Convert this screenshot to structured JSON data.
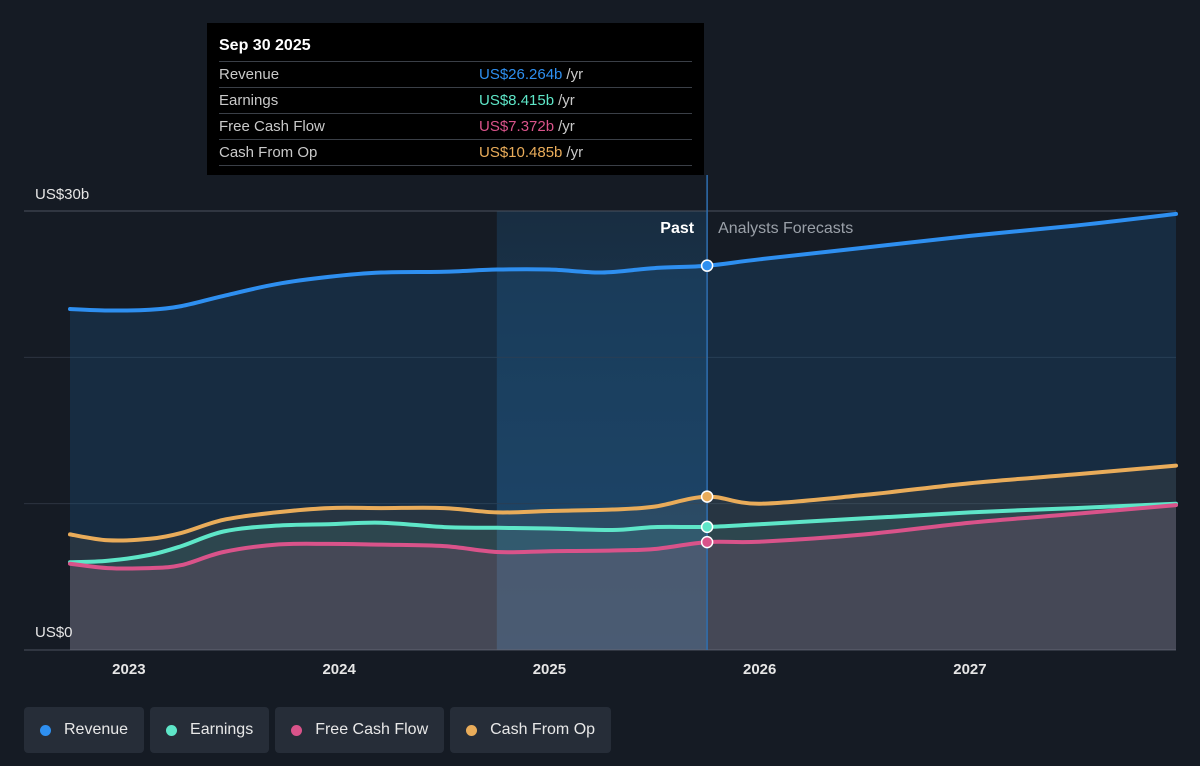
{
  "chart_data": {
    "type": "line",
    "x_axis": {
      "ticks": [
        "2023",
        "2024",
        "2025",
        "2026",
        "2027"
      ],
      "range": [
        2022.72,
        2027.98
      ]
    },
    "y_axis": {
      "min_label": "US$0",
      "max_label": "US$30b",
      "range": [
        0,
        30
      ],
      "unit": "US$ billions",
      "gridlines": [
        0,
        10,
        20,
        30
      ]
    },
    "divider_x": 2025.75,
    "past_band_start": 2024.75,
    "labels": {
      "past": "Past",
      "forecast": "Analysts Forecasts"
    },
    "series": [
      {
        "name": "Revenue",
        "color": "#2e8ff0",
        "points": [
          [
            2022.72,
            23.3
          ],
          [
            2022.9,
            23.2
          ],
          [
            2023.1,
            23.25
          ],
          [
            2023.25,
            23.5
          ],
          [
            2023.45,
            24.2
          ],
          [
            2023.7,
            25.0
          ],
          [
            2023.95,
            25.5
          ],
          [
            2024.2,
            25.8
          ],
          [
            2024.5,
            25.85
          ],
          [
            2024.75,
            26.0
          ],
          [
            2025.0,
            26.0
          ],
          [
            2025.25,
            25.8
          ],
          [
            2025.5,
            26.1
          ],
          [
            2025.75,
            26.264
          ]
        ],
        "forecast": [
          [
            2025.75,
            26.264
          ],
          [
            2026.0,
            26.7
          ],
          [
            2026.5,
            27.5
          ],
          [
            2027.0,
            28.3
          ],
          [
            2027.5,
            29.0
          ],
          [
            2027.98,
            29.8
          ]
        ]
      },
      {
        "name": "Earnings",
        "color": "#5ee6c8",
        "points": [
          [
            2022.72,
            6.0
          ],
          [
            2022.9,
            6.1
          ],
          [
            2023.1,
            6.5
          ],
          [
            2023.25,
            7.1
          ],
          [
            2023.45,
            8.1
          ],
          [
            2023.7,
            8.5
          ],
          [
            2023.95,
            8.6
          ],
          [
            2024.2,
            8.7
          ],
          [
            2024.5,
            8.4
          ],
          [
            2024.75,
            8.35
          ],
          [
            2025.0,
            8.3
          ],
          [
            2025.3,
            8.2
          ],
          [
            2025.5,
            8.4
          ],
          [
            2025.75,
            8.415
          ]
        ],
        "forecast": [
          [
            2025.75,
            8.415
          ],
          [
            2026.0,
            8.6
          ],
          [
            2026.5,
            9.0
          ],
          [
            2027.0,
            9.4
          ],
          [
            2027.5,
            9.7
          ],
          [
            2027.98,
            10.0
          ]
        ]
      },
      {
        "name": "Free Cash Flow",
        "color": "#d9538a",
        "points": [
          [
            2022.72,
            5.9
          ],
          [
            2022.9,
            5.6
          ],
          [
            2023.1,
            5.6
          ],
          [
            2023.25,
            5.8
          ],
          [
            2023.45,
            6.7
          ],
          [
            2023.7,
            7.2
          ],
          [
            2023.95,
            7.25
          ],
          [
            2024.2,
            7.2
          ],
          [
            2024.5,
            7.1
          ],
          [
            2024.75,
            6.7
          ],
          [
            2025.0,
            6.75
          ],
          [
            2025.3,
            6.8
          ],
          [
            2025.5,
            6.9
          ],
          [
            2025.75,
            7.372
          ]
        ],
        "forecast": [
          [
            2025.75,
            7.372
          ],
          [
            2026.0,
            7.4
          ],
          [
            2026.5,
            7.9
          ],
          [
            2027.0,
            8.7
          ],
          [
            2027.5,
            9.3
          ],
          [
            2027.98,
            9.9
          ]
        ]
      },
      {
        "name": "Cash From Op",
        "color": "#e9ac5a",
        "points": [
          [
            2022.72,
            7.9
          ],
          [
            2022.9,
            7.5
          ],
          [
            2023.1,
            7.6
          ],
          [
            2023.25,
            8.0
          ],
          [
            2023.45,
            8.9
          ],
          [
            2023.7,
            9.4
          ],
          [
            2023.95,
            9.7
          ],
          [
            2024.2,
            9.7
          ],
          [
            2024.5,
            9.7
          ],
          [
            2024.75,
            9.4
          ],
          [
            2025.0,
            9.5
          ],
          [
            2025.3,
            9.6
          ],
          [
            2025.5,
            9.8
          ],
          [
            2025.75,
            10.485
          ]
        ],
        "forecast": [
          [
            2025.75,
            10.485
          ],
          [
            2026.0,
            10.0
          ],
          [
            2026.5,
            10.6
          ],
          [
            2027.0,
            11.4
          ],
          [
            2027.5,
            12.0
          ],
          [
            2027.98,
            12.6
          ]
        ]
      }
    ]
  },
  "tooltip": {
    "date": "Sep 30 2025",
    "unit": "/yr",
    "rows": [
      {
        "label": "Revenue",
        "value": "US$26.264b",
        "color": "#2e8ff0"
      },
      {
        "label": "Earnings",
        "value": "US$8.415b",
        "color": "#5ee6c8"
      },
      {
        "label": "Free Cash Flow",
        "value": "US$7.372b",
        "color": "#d9538a"
      },
      {
        "label": "Cash From Op",
        "value": "US$10.485b",
        "color": "#e9ac5a"
      }
    ]
  },
  "legend": [
    {
      "label": "Revenue",
      "color": "#2e8ff0"
    },
    {
      "label": "Earnings",
      "color": "#5ee6c8"
    },
    {
      "label": "Free Cash Flow",
      "color": "#d9538a"
    },
    {
      "label": "Cash From Op",
      "color": "#e9ac5a"
    }
  ]
}
